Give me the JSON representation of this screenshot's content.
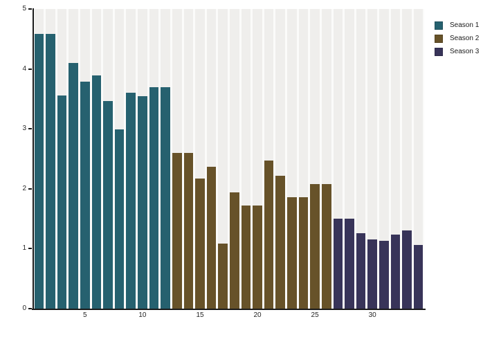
{
  "figure": {
    "background": "#ffffff",
    "stripe_color": "#efeeec",
    "plot_gap_color": "#fbfbfa",
    "axis_color": "#1a1a1a",
    "tick_label_color": "#262626"
  },
  "chart_data": {
    "type": "bar",
    "title": "",
    "xlabel": "",
    "ylabel": "",
    "x_range": [
      1,
      34
    ],
    "ylim": [
      0,
      5
    ],
    "yticks": [
      "0",
      "1",
      "2",
      "3",
      "4",
      "5"
    ],
    "xticks": [
      "5",
      "10",
      "15",
      "20",
      "25",
      "30"
    ],
    "xtick_positions": [
      5,
      10,
      15,
      20,
      25,
      30
    ],
    "grid": "full-height light-gray stripe behind each bar slot",
    "legend_position": "top-right outside plot",
    "series": [
      {
        "name": "Season 1",
        "color": "#26616f",
        "x_start": 1,
        "values": [
          4.58,
          4.58,
          3.56,
          4.1,
          3.79,
          3.89,
          3.46,
          2.99,
          3.6,
          3.54,
          3.69,
          3.69
        ]
      },
      {
        "name": "Season 2",
        "color": "#675229",
        "x_start": 13,
        "values": [
          2.6,
          2.6,
          2.17,
          2.37,
          1.08,
          1.94,
          1.72,
          1.72,
          2.47,
          2.22,
          1.86,
          1.86,
          2.08,
          2.08
        ]
      },
      {
        "name": "Season 3",
        "color": "#383459",
        "x_start": 27,
        "values": [
          1.5,
          1.5,
          1.26,
          1.15,
          1.13,
          1.24,
          1.31,
          1.06
        ]
      }
    ]
  }
}
